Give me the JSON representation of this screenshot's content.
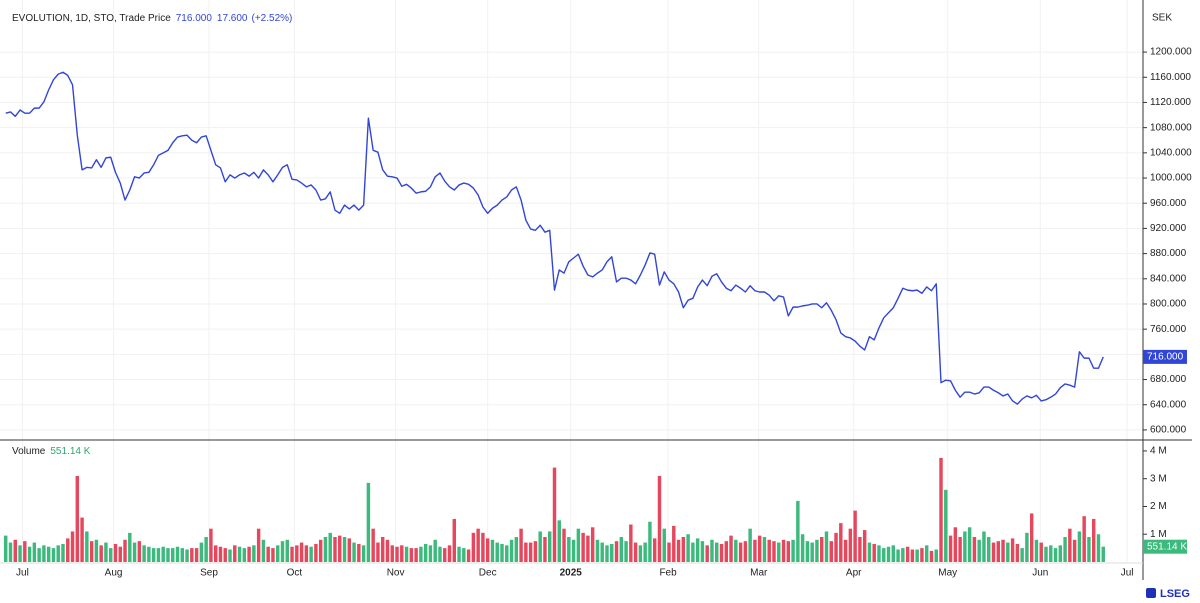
{
  "chart_data": [
    {
      "type": "line",
      "title": "EVOLUTION, 1D, STO, Trade Price",
      "last_price": "716.000",
      "change": "17.600",
      "change_pct": "(+2.52%)",
      "currency": "SEK",
      "color": "#3146d6",
      "grid": true,
      "values": [
        1103,
        1105,
        1098,
        1108,
        1103,
        1103,
        1111,
        1111,
        1121,
        1140,
        1156,
        1165,
        1168,
        1163,
        1148,
        1068,
        1013,
        1017,
        1016,
        1029,
        1017,
        1032,
        1033,
        1009,
        992,
        965,
        981,
        1002,
        1000,
        1008,
        1009,
        1021,
        1036,
        1040,
        1044,
        1056,
        1065,
        1067,
        1068,
        1060,
        1056,
        1065,
        1067,
        1044,
        1021,
        1016,
        994,
        1005,
        1000,
        1005,
        1008,
        1003,
        1009,
        1000,
        1013,
        1005,
        994,
        1005,
        1017,
        1021,
        998,
        997,
        992,
        986,
        989,
        981,
        965,
        967,
        978,
        949,
        944,
        957,
        951,
        957,
        949,
        957,
        1095,
        1044,
        1041,
        1013,
        1003,
        1002,
        1000,
        987,
        990,
        984,
        976,
        978,
        979,
        986,
        1002,
        1008,
        995,
        986,
        981,
        989,
        992,
        990,
        984,
        973,
        954,
        944,
        952,
        957,
        965,
        970,
        981,
        986,
        965,
        933,
        919,
        917,
        925,
        914,
        917,
        822,
        854,
        849,
        867,
        873,
        879,
        860,
        846,
        843,
        849,
        854,
        867,
        875,
        835,
        841,
        841,
        838,
        832,
        846,
        862,
        881,
        879,
        830,
        851,
        838,
        832,
        819,
        794,
        806,
        809,
        827,
        838,
        829,
        844,
        848,
        835,
        825,
        821,
        830,
        825,
        819,
        829,
        821,
        819,
        819,
        814,
        805,
        813,
        811,
        781,
        795,
        795,
        797,
        798,
        800,
        800,
        794,
        802,
        790,
        775,
        754,
        748,
        746,
        741,
        733,
        727,
        748,
        743,
        762,
        778,
        786,
        794,
        809,
        825,
        822,
        821,
        822,
        817,
        827,
        821,
        832,
        675,
        679,
        678,
        663,
        652,
        660,
        660,
        657,
        659,
        668,
        668,
        663,
        659,
        654,
        657,
        646,
        641,
        649,
        654,
        651,
        655,
        646,
        648,
        652,
        657,
        667,
        673,
        671,
        668,
        724,
        714,
        714,
        698,
        698,
        716
      ],
      "ylim": [
        584,
        1270
      ],
      "yticks": [
        {
          "value": 600,
          "label": "600.000"
        },
        {
          "value": 640,
          "label": "640.000"
        },
        {
          "value": 680,
          "label": "680.000"
        },
        {
          "value": 720,
          "label": "720.000"
        },
        {
          "value": 760,
          "label": "760.000"
        },
        {
          "value": 800,
          "label": "800.000"
        },
        {
          "value": 840,
          "label": "840.000"
        },
        {
          "value": 880,
          "label": "880.000"
        },
        {
          "value": 920,
          "label": "920.000"
        },
        {
          "value": 960,
          "label": "960.000"
        },
        {
          "value": 1000,
          "label": "1000.000"
        },
        {
          "value": 1040,
          "label": "1040.000"
        },
        {
          "value": 1080,
          "label": "1080.000"
        },
        {
          "value": 1120,
          "label": "1120.000"
        },
        {
          "value": 1160,
          "label": "1160.000"
        },
        {
          "value": 1200,
          "label": "1200.000"
        }
      ]
    },
    {
      "type": "bar",
      "title": "Volume",
      "last_volume": "551.14 K",
      "up_color": "#3cb97c",
      "down_color": "#e5475d",
      "values": [
        0.95,
        0.7,
        0.8,
        0.6,
        0.75,
        0.55,
        0.7,
        0.5,
        0.6,
        0.55,
        0.5,
        0.6,
        0.65,
        0.85,
        1.1,
        3.1,
        1.6,
        1.1,
        0.75,
        0.8,
        0.6,
        0.7,
        0.5,
        0.65,
        0.55,
        0.8,
        1.05,
        0.7,
        0.75,
        0.6,
        0.55,
        0.5,
        0.5,
        0.55,
        0.5,
        0.5,
        0.55,
        0.5,
        0.45,
        0.5,
        0.5,
        0.7,
        0.9,
        1.2,
        0.6,
        0.55,
        0.5,
        0.45,
        0.6,
        0.55,
        0.5,
        0.55,
        0.6,
        1.2,
        0.8,
        0.55,
        0.5,
        0.6,
        0.75,
        0.8,
        0.55,
        0.6,
        0.7,
        0.6,
        0.55,
        0.65,
        0.8,
        0.9,
        1.05,
        0.9,
        0.95,
        0.9,
        0.85,
        0.7,
        0.65,
        0.6,
        2.85,
        1.2,
        0.7,
        0.9,
        0.8,
        0.6,
        0.55,
        0.6,
        0.55,
        0.5,
        0.5,
        0.55,
        0.65,
        0.6,
        0.8,
        0.55,
        0.5,
        0.6,
        1.55,
        0.55,
        0.5,
        0.45,
        1.05,
        1.2,
        1.05,
        0.85,
        0.8,
        0.7,
        0.65,
        0.6,
        0.8,
        0.9,
        1.2,
        0.7,
        0.7,
        0.75,
        1.1,
        0.9,
        1.1,
        3.4,
        1.5,
        1.2,
        0.9,
        0.8,
        1.2,
        1.05,
        0.95,
        1.25,
        0.8,
        0.7,
        0.6,
        0.65,
        0.75,
        0.9,
        0.75,
        1.35,
        0.7,
        0.6,
        0.7,
        1.45,
        0.85,
        3.1,
        1.2,
        0.7,
        1.3,
        0.8,
        0.9,
        1.0,
        0.7,
        0.85,
        0.75,
        0.6,
        0.8,
        0.7,
        0.65,
        0.75,
        0.95,
        0.8,
        0.7,
        0.75,
        1.2,
        0.8,
        0.95,
        0.9,
        0.8,
        0.75,
        0.7,
        0.8,
        0.75,
        0.8,
        2.2,
        1.0,
        0.75,
        0.7,
        0.8,
        0.9,
        1.1,
        0.75,
        1.05,
        1.4,
        0.8,
        1.2,
        1.85,
        0.9,
        1.15,
        0.7,
        0.65,
        0.6,
        0.5,
        0.55,
        0.6,
        0.45,
        0.5,
        0.55,
        0.45,
        0.45,
        0.5,
        0.6,
        0.4,
        0.45,
        3.75,
        2.6,
        0.95,
        1.25,
        0.9,
        1.1,
        1.25,
        0.9,
        0.8,
        1.1,
        0.9,
        0.7,
        0.75,
        0.8,
        0.7,
        0.85,
        0.65,
        0.5,
        1.05,
        1.75,
        0.8,
        0.7,
        0.55,
        0.6,
        0.5,
        0.6,
        0.9,
        1.2,
        0.8,
        1.1,
        1.65,
        0.9,
        1.55,
        1.0,
        0.55114
      ],
      "ylim": [
        0,
        4.25
      ],
      "yticks": [
        {
          "value": 1,
          "label": "1 M"
        },
        {
          "value": 2,
          "label": "2 M"
        },
        {
          "value": 3,
          "label": "3 M"
        },
        {
          "value": 4,
          "label": "4 M"
        }
      ],
      "xlim": [
        -1.2,
        237.7
      ],
      "xticks": [
        {
          "value": 3.5,
          "label": "Jul"
        },
        {
          "value": 22.6,
          "label": "Aug"
        },
        {
          "value": 42.6,
          "label": "Sep"
        },
        {
          "value": 60.5,
          "label": "Oct"
        },
        {
          "value": 81.7,
          "label": "Nov"
        },
        {
          "value": 101,
          "label": "Dec"
        },
        {
          "value": 118.4,
          "label": "2025"
        },
        {
          "value": 138.8,
          "label": "Feb"
        },
        {
          "value": 157.8,
          "label": "Mar"
        },
        {
          "value": 177.7,
          "label": "Apr"
        },
        {
          "value": 197.4,
          "label": "May"
        },
        {
          "value": 216.8,
          "label": "Jun"
        },
        {
          "value": 235,
          "label": "Jul"
        }
      ]
    }
  ],
  "footer": {
    "brand": "LSEG"
  }
}
